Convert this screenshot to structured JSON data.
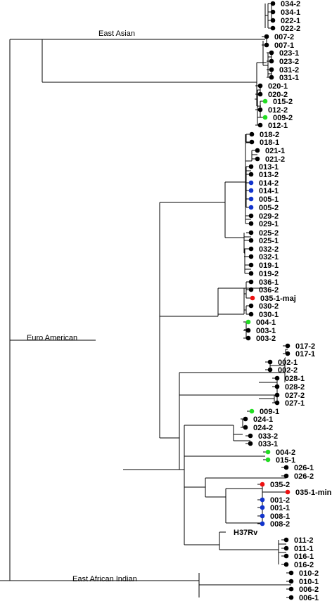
{
  "colors": {
    "default": "#000000",
    "green": "#22dd22",
    "blue": "#1133cc",
    "red": "#ee1111"
  },
  "clades": [
    {
      "id": "east-asian",
      "label": "East Asian"
    },
    {
      "id": "euro-american",
      "label": "Euro American"
    },
    {
      "id": "east-african-indian",
      "label": "East African Indian"
    }
  ],
  "tips": [
    {
      "label": "034-2",
      "color": "default"
    },
    {
      "label": "034-1",
      "color": "default"
    },
    {
      "label": "022-1",
      "color": "default"
    },
    {
      "label": "022-2",
      "color": "default"
    },
    {
      "label": "007-2",
      "color": "default"
    },
    {
      "label": "007-1",
      "color": "default"
    },
    {
      "label": "023-1",
      "color": "default"
    },
    {
      "label": "023-2",
      "color": "default"
    },
    {
      "label": "031-2",
      "color": "default"
    },
    {
      "label": "031-1",
      "color": "default"
    },
    {
      "label": "020-1",
      "color": "default"
    },
    {
      "label": "020-2",
      "color": "default"
    },
    {
      "label": "015-2",
      "color": "green"
    },
    {
      "label": "012-2",
      "color": "default"
    },
    {
      "label": "009-2",
      "color": "green"
    },
    {
      "label": "012-1",
      "color": "default"
    },
    {
      "label": "018-2",
      "color": "default"
    },
    {
      "label": "018-1",
      "color": "default"
    },
    {
      "label": "021-1",
      "color": "default"
    },
    {
      "label": "021-2",
      "color": "default"
    },
    {
      "label": "013-1",
      "color": "default"
    },
    {
      "label": "013-2",
      "color": "default"
    },
    {
      "label": "014-2",
      "color": "blue"
    },
    {
      "label": "014-1",
      "color": "blue"
    },
    {
      "label": "005-1",
      "color": "blue"
    },
    {
      "label": "005-2",
      "color": "blue"
    },
    {
      "label": "029-2",
      "color": "default"
    },
    {
      "label": "029-1",
      "color": "default"
    },
    {
      "label": "025-2",
      "color": "default"
    },
    {
      "label": "025-1",
      "color": "default"
    },
    {
      "label": "032-2",
      "color": "default"
    },
    {
      "label": "032-1",
      "color": "default"
    },
    {
      "label": "019-1",
      "color": "default"
    },
    {
      "label": "019-2",
      "color": "default"
    },
    {
      "label": "036-1",
      "color": "default"
    },
    {
      "label": "036-2",
      "color": "default"
    },
    {
      "label": "035-1-maj",
      "color": "red"
    },
    {
      "label": "030-2",
      "color": "default"
    },
    {
      "label": "030-1",
      "color": "default"
    },
    {
      "label": "004-1",
      "color": "green"
    },
    {
      "label": "003-1",
      "color": "default"
    },
    {
      "label": "003-2",
      "color": "default"
    },
    {
      "label": "017-2",
      "color": "default"
    },
    {
      "label": "017-1",
      "color": "default"
    },
    {
      "label": "002-1",
      "color": "default"
    },
    {
      "label": "002-2",
      "color": "default"
    },
    {
      "label": "028-1",
      "color": "default"
    },
    {
      "label": "028-2",
      "color": "default"
    },
    {
      "label": "027-2",
      "color": "default"
    },
    {
      "label": "027-1",
      "color": "default"
    },
    {
      "label": "009-1",
      "color": "green"
    },
    {
      "label": "024-1",
      "color": "default"
    },
    {
      "label": "024-2",
      "color": "default"
    },
    {
      "label": "033-2",
      "color": "default"
    },
    {
      "label": "033-1",
      "color": "default"
    },
    {
      "label": "004-2",
      "color": "green"
    },
    {
      "label": "015-1",
      "color": "green"
    },
    {
      "label": "026-1",
      "color": "default"
    },
    {
      "label": "026-2",
      "color": "default"
    },
    {
      "label": "035-2",
      "color": "red"
    },
    {
      "label": "035-1-min",
      "color": "red"
    },
    {
      "label": "001-2",
      "color": "blue"
    },
    {
      "label": "001-1",
      "color": "blue"
    },
    {
      "label": "008-1",
      "color": "blue"
    },
    {
      "label": "008-2",
      "color": "blue"
    },
    {
      "label": "H37Rv",
      "color": "none"
    },
    {
      "label": "011-2",
      "color": "default"
    },
    {
      "label": "011-1",
      "color": "default"
    },
    {
      "label": "016-1",
      "color": "default"
    },
    {
      "label": "016-2",
      "color": "default"
    },
    {
      "label": "010-2",
      "color": "default"
    },
    {
      "label": "010-1",
      "color": "default"
    },
    {
      "label": "006-2",
      "color": "default"
    },
    {
      "label": "006-1",
      "color": "default"
    }
  ]
}
